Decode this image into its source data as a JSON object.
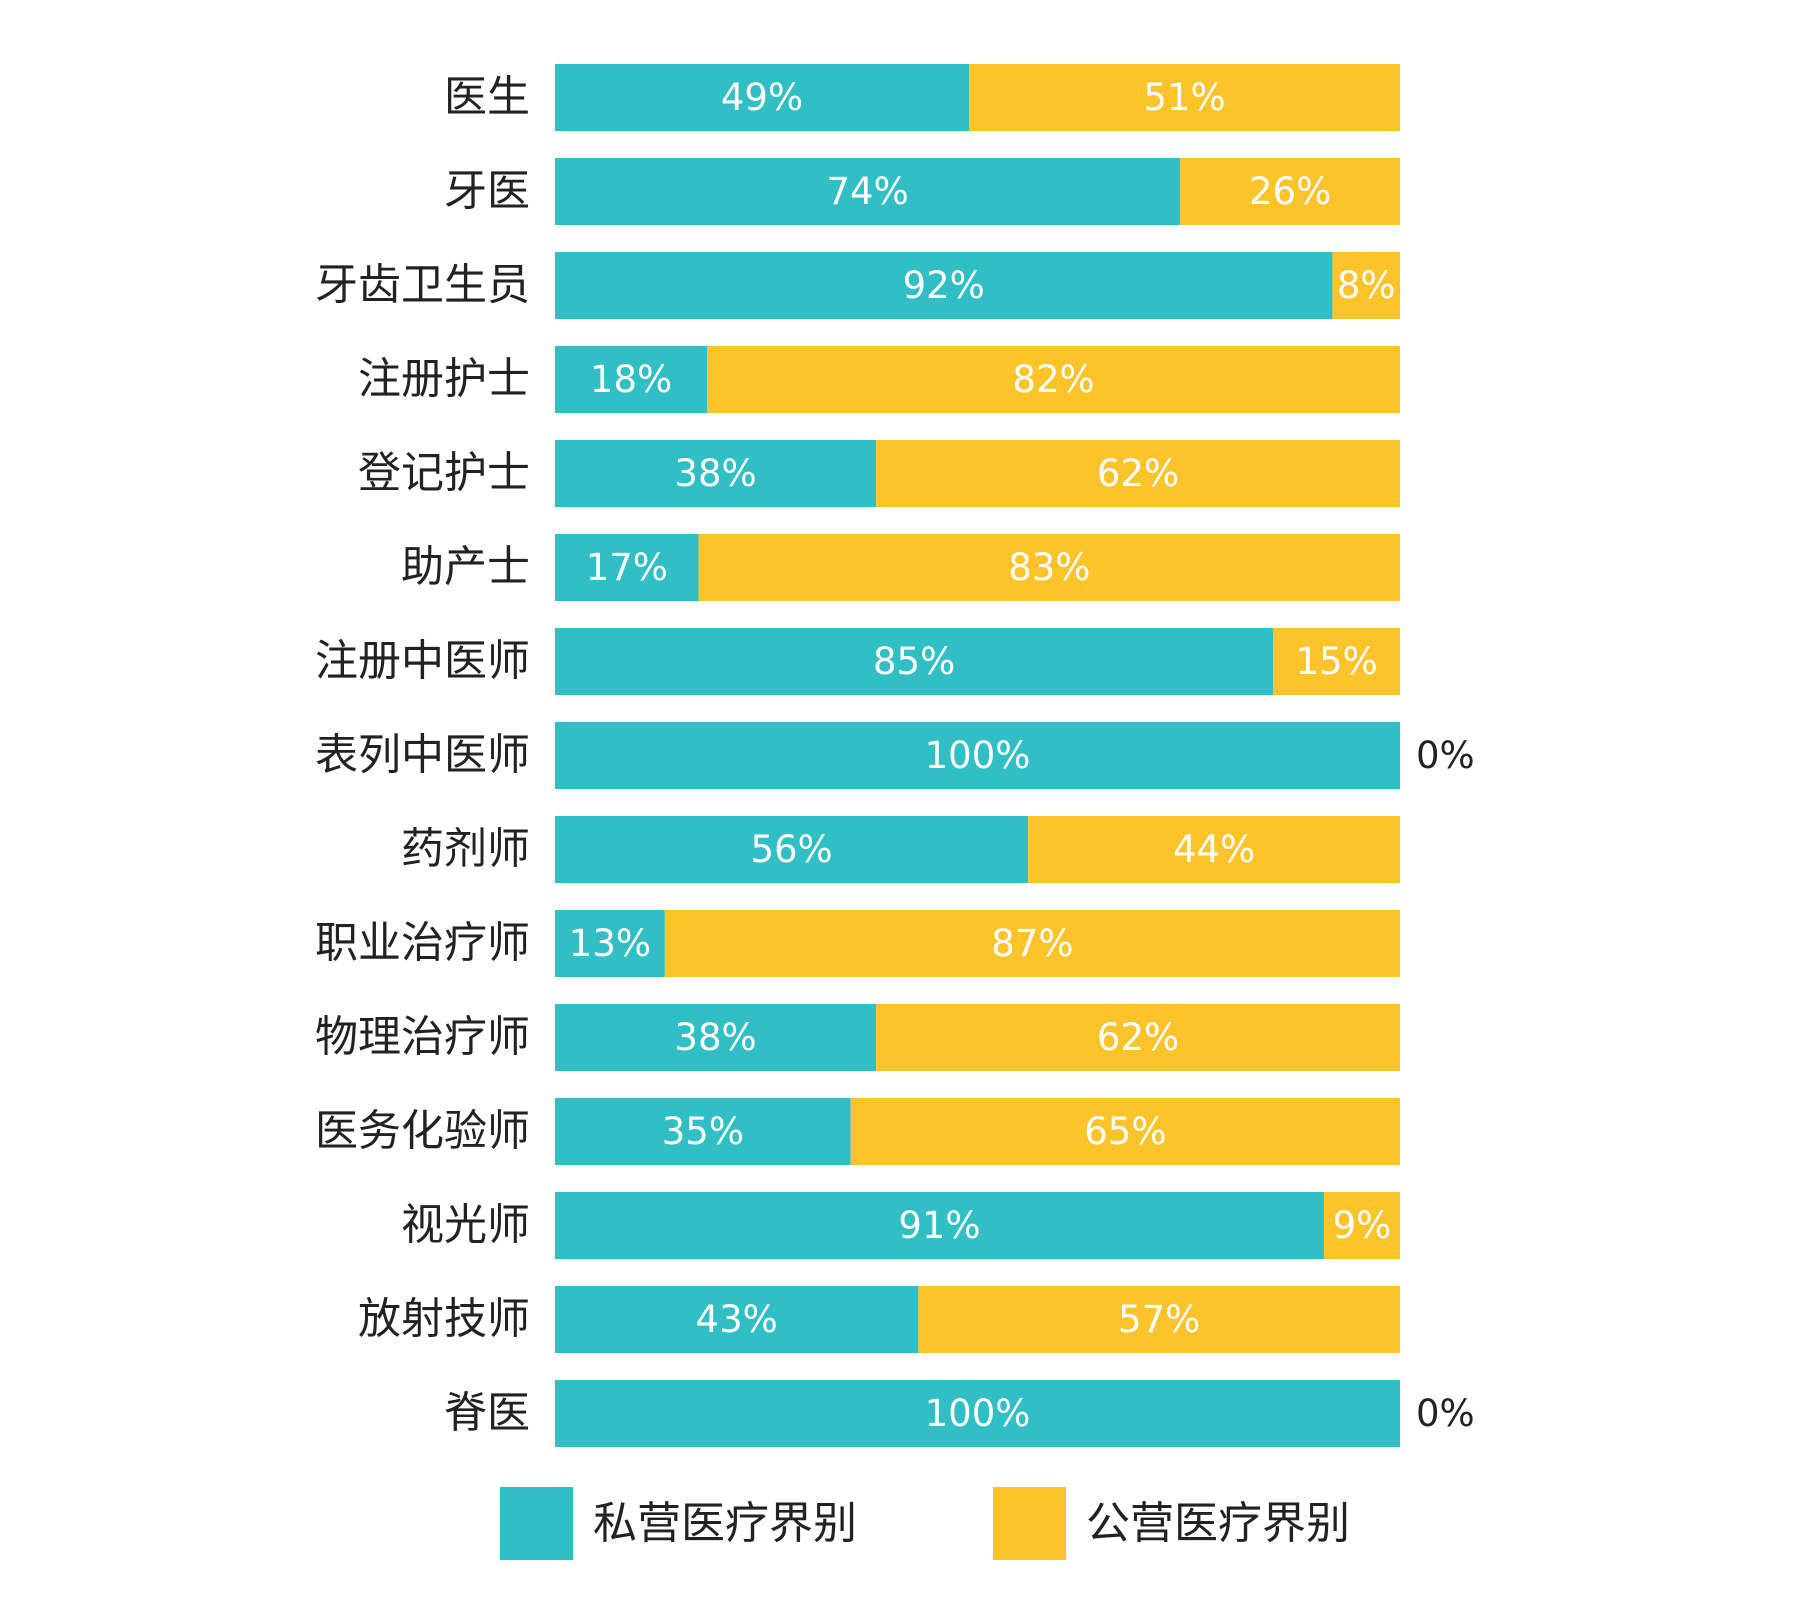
{
  "chart_data": {
    "type": "bar",
    "orientation": "horizontal",
    "stacked": true,
    "percent_stacked": true,
    "categories": [
      "医生",
      "牙医",
      "牙齿卫生员",
      "注册护士",
      "登记护士",
      "助产士",
      "注册中医师",
      "表列中医师",
      "药剂师",
      "职业治疗师",
      "物理治疗师",
      "医务化验师",
      "视光师",
      "放射技师",
      "脊医"
    ],
    "series": [
      {
        "name": "私营医疗界别",
        "color": "#2FBFC4",
        "values": [
          49,
          74,
          92,
          18,
          38,
          17,
          85,
          100,
          56,
          13,
          38,
          35,
          91,
          43,
          100
        ]
      },
      {
        "name": "公营医疗界别",
        "color": "#FDC32B",
        "values": [
          51,
          26,
          8,
          82,
          62,
          83,
          15,
          0,
          44,
          87,
          62,
          65,
          9,
          57,
          0
        ]
      }
    ],
    "value_suffix": "%",
    "xlim": [
      0,
      100
    ],
    "legend_position": "bottom",
    "grid": false,
    "title": "",
    "xlabel": "",
    "ylabel": ""
  }
}
